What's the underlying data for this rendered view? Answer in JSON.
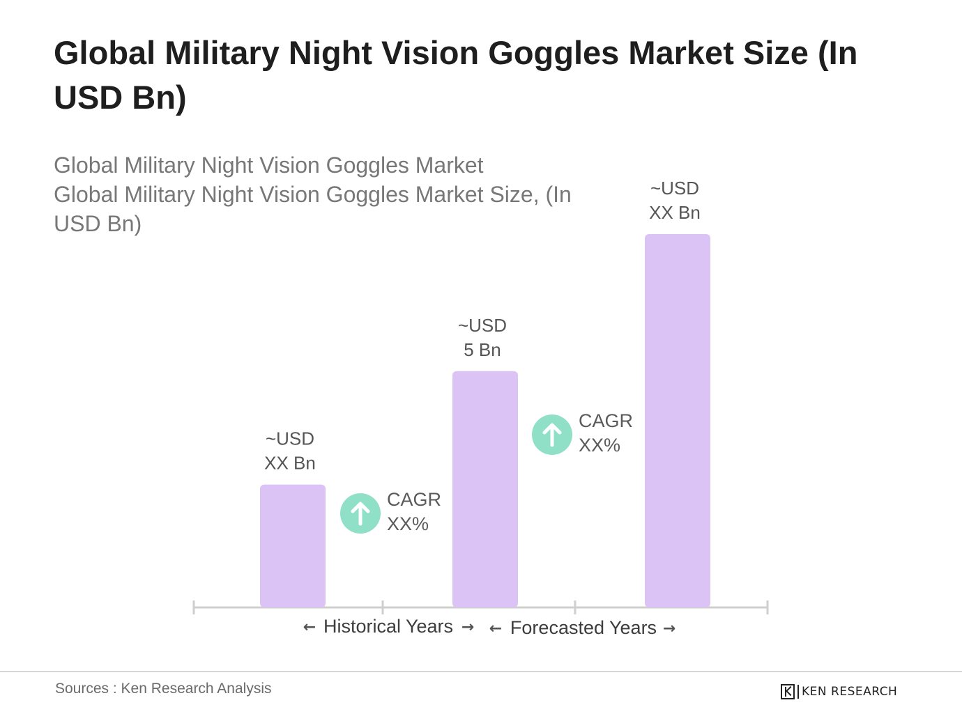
{
  "title": "Global Military Night Vision Goggles Market Size (In USD Bn)",
  "subtitle_line1": "Global Military Night Vision Goggles Market",
  "subtitle_line2": "Global Military Night Vision Goggles Market Size, (In USD Bn)",
  "colors": {
    "bar": "#dcc3f5",
    "cagr_badge": "#8fe0c6",
    "axis": "#cfcfcf"
  },
  "chart_data": {
    "type": "bar",
    "categories": [
      "",
      "",
      ""
    ],
    "values": [
      2.6,
      5,
      7.9
    ],
    "value_labels": [
      [
        "~USD",
        "XX Bn"
      ],
      [
        "~USD",
        "5 Bn"
      ],
      [
        "~USD",
        "XX Bn"
      ]
    ],
    "ylim": [
      0,
      8.5
    ],
    "grid": false,
    "cagr": [
      {
        "icon": "arrow-up-icon",
        "line1": "CAGR",
        "line2": "XX%"
      },
      {
        "icon": "arrow-up-icon",
        "line1": "CAGR",
        "line2": "XX%"
      }
    ],
    "periods": [
      "Historical Years",
      "Forecasted Years"
    ]
  },
  "footer": {
    "source": "Sources : Ken Research Analysis",
    "brand": "KEN RESEARCH"
  }
}
